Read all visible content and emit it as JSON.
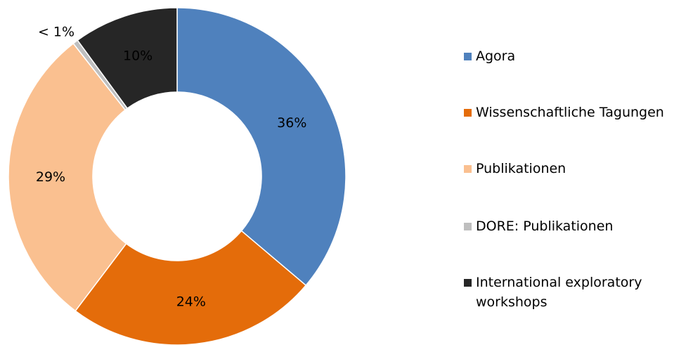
{
  "chart_data": {
    "type": "donut",
    "categories": [
      "Agora",
      "Wissenschaftliche Tagungen",
      "Publikationen",
      "DORE: Publikationen",
      "International exploratory workshops"
    ],
    "values": [
      36,
      24,
      29,
      0.5,
      10
    ],
    "value_labels": [
      "36%",
      "24%",
      "29%",
      "< 1%",
      "10%"
    ],
    "colors": [
      "#4f81bd",
      "#e46c0a",
      "#fac090",
      "#bfbfbf",
      "#262626"
    ],
    "legend": "right"
  }
}
